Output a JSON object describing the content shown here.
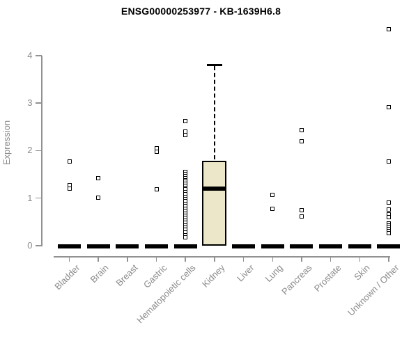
{
  "chart_data": {
    "type": "boxplot",
    "title": "ENSG00000253977 - KB-1639H6.8",
    "ylabel": "Expression",
    "xlabel": "",
    "ylim": [
      0,
      4.6
    ],
    "yticks": [
      0,
      1,
      2,
      3,
      4
    ],
    "grid": false,
    "legend": "none",
    "colors": {
      "box_fill": "#ece7c8",
      "box_border": "#000000",
      "median_line": "#000000",
      "marker": "#000000",
      "axis_line": "#919191",
      "axis_text": "#8a8a8a",
      "title_text": "#000000",
      "background": "#ffffff"
    },
    "categories": [
      "Bladder",
      "Brain",
      "Breast",
      "Gastric",
      "Hematopoietic cells",
      "Kidney",
      "Liver",
      "Lung",
      "Pancreas",
      "Prostate",
      "Skin",
      "Unknown / Other"
    ],
    "boxes": [
      {
        "category": "Bladder",
        "median": 0,
        "q1": 0,
        "q3": 0,
        "whisker_low": 0,
        "whisker_high": 0,
        "outliers": [
          1.77,
          1.27,
          1.2
        ]
      },
      {
        "category": "Brain",
        "median": 0,
        "q1": 0,
        "q3": 0,
        "whisker_low": 0,
        "whisker_high": 0,
        "outliers": [
          1.42,
          1.01
        ]
      },
      {
        "category": "Breast",
        "median": 0,
        "q1": 0,
        "q3": 0,
        "whisker_low": 0,
        "whisker_high": 0,
        "outliers": []
      },
      {
        "category": "Gastric",
        "median": 0,
        "q1": 0,
        "q3": 0,
        "whisker_low": 0,
        "whisker_high": 0,
        "outliers": [
          2.05,
          1.97,
          1.19
        ]
      },
      {
        "category": "Hematopoietic cells",
        "median": 0,
        "q1": 0,
        "q3": 0,
        "whisker_low": 0,
        "whisker_high": 0,
        "outliers": [
          2.62,
          2.4,
          2.33,
          1.55,
          1.51,
          1.46,
          1.42,
          1.38,
          1.34,
          1.3,
          1.26,
          1.22,
          1.18,
          1.13,
          1.08,
          1.03,
          0.98,
          0.93,
          0.88,
          0.83,
          0.78,
          0.73,
          0.68,
          0.63,
          0.58,
          0.53,
          0.48,
          0.43,
          0.38,
          0.33,
          0.28,
          0.22,
          0.17
        ]
      },
      {
        "category": "Kidney",
        "median": 1.2,
        "q1": 0,
        "q3": 1.79,
        "whisker_low": 0,
        "whisker_high": 3.8,
        "outliers": []
      },
      {
        "category": "Liver",
        "median": 0,
        "q1": 0,
        "q3": 0,
        "whisker_low": 0,
        "whisker_high": 0,
        "outliers": []
      },
      {
        "category": "Lung",
        "median": 0,
        "q1": 0,
        "q3": 0,
        "whisker_low": 0,
        "whisker_high": 0,
        "outliers": [
          1.07,
          0.77
        ]
      },
      {
        "category": "Pancreas",
        "median": 0,
        "q1": 0,
        "q3": 0,
        "whisker_low": 0,
        "whisker_high": 0,
        "outliers": [
          2.43,
          2.2,
          0.75,
          0.62
        ]
      },
      {
        "category": "Prostate",
        "median": 0,
        "q1": 0,
        "q3": 0,
        "whisker_low": 0,
        "whisker_high": 0,
        "outliers": []
      },
      {
        "category": "Skin",
        "median": 0,
        "q1": 0,
        "q3": 0,
        "whisker_low": 0,
        "whisker_high": 0,
        "outliers": []
      },
      {
        "category": "Unknown / Other",
        "median": 0,
        "q1": 0,
        "q3": 0,
        "whisker_low": 0,
        "whisker_high": 0,
        "outliers": [
          4.56,
          2.92,
          1.77,
          0.91,
          0.76,
          0.66,
          0.6,
          0.47,
          0.43,
          0.39,
          0.35,
          0.31,
          0.27
        ]
      }
    ]
  }
}
